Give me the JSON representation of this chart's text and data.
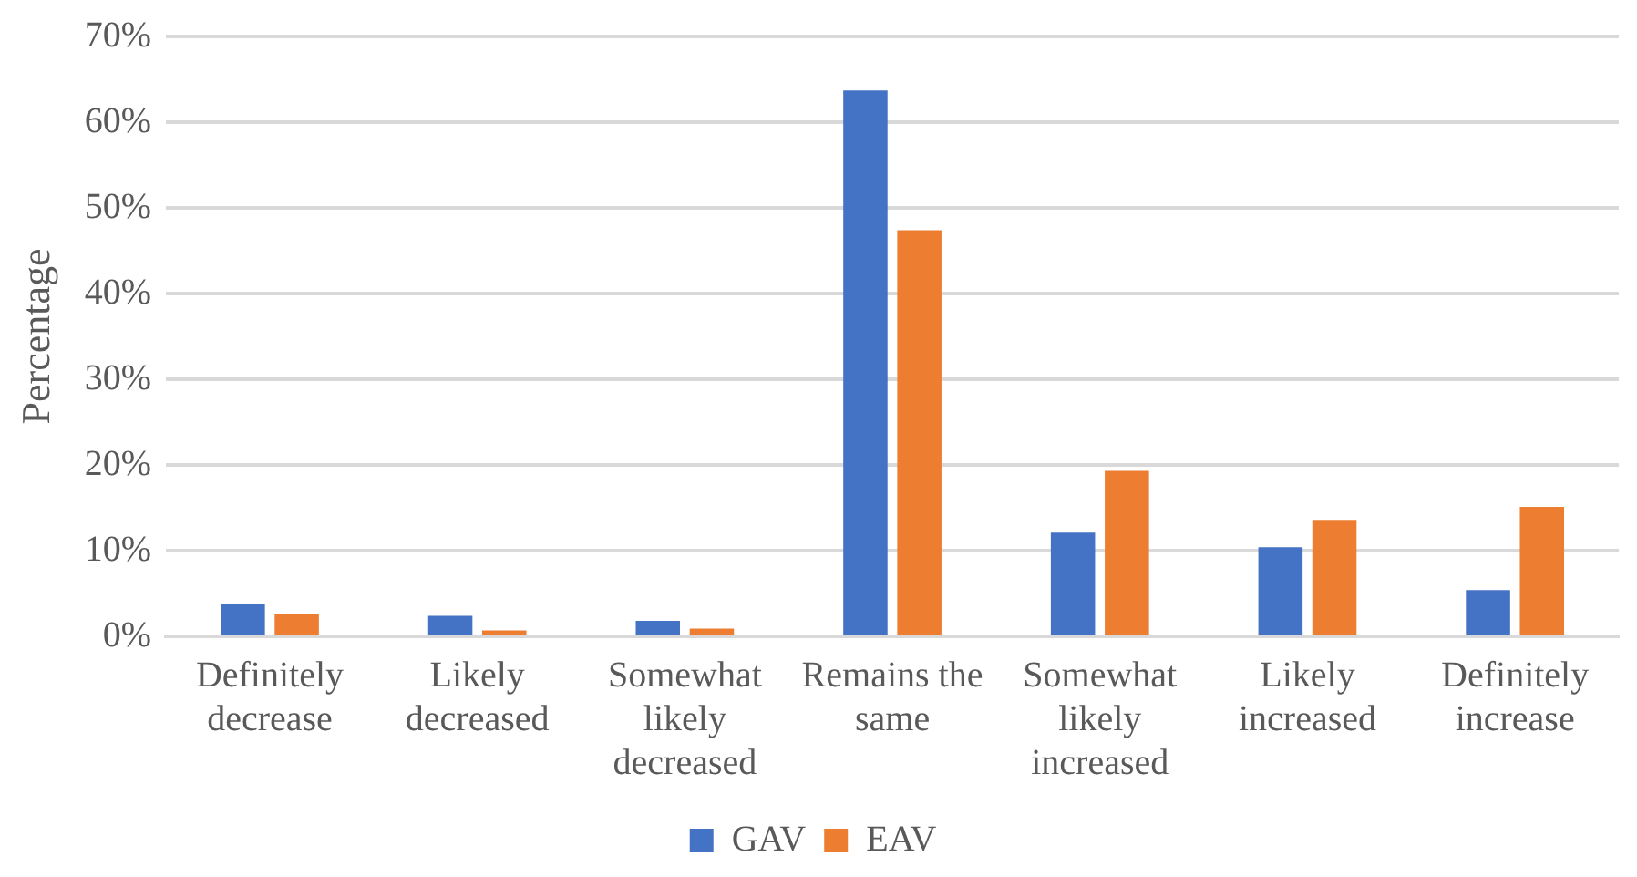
{
  "chart_data": {
    "type": "bar",
    "ylabel": "Percentage",
    "categories": [
      "Definitely decrease",
      "Likely decreased",
      "Somewhat likely decreased",
      "Remains the same",
      "Somewhat likely increased",
      "Likely increased",
      "Definitely increase"
    ],
    "series": [
      {
        "name": "GAV",
        "color": "#4472c4",
        "values": [
          3.8,
          2.4,
          1.8,
          63.7,
          12.1,
          10.4,
          5.4
        ]
      },
      {
        "name": "EAV",
        "color": "#ed7d31",
        "values": [
          2.6,
          0.7,
          0.9,
          47.4,
          19.3,
          13.6,
          15.1
        ]
      }
    ],
    "ylim": [
      0,
      70
    ],
    "yticks": [
      {
        "value": 0,
        "label": "0%"
      },
      {
        "value": 10,
        "label": "10%"
      },
      {
        "value": 20,
        "label": "20%"
      },
      {
        "value": 30,
        "label": "30%"
      },
      {
        "value": 40,
        "label": "40%"
      },
      {
        "value": 50,
        "label": "50%"
      },
      {
        "value": 60,
        "label": "60%"
      },
      {
        "value": 70,
        "label": "70%"
      }
    ],
    "grid": "y",
    "legend": "bottom"
  }
}
